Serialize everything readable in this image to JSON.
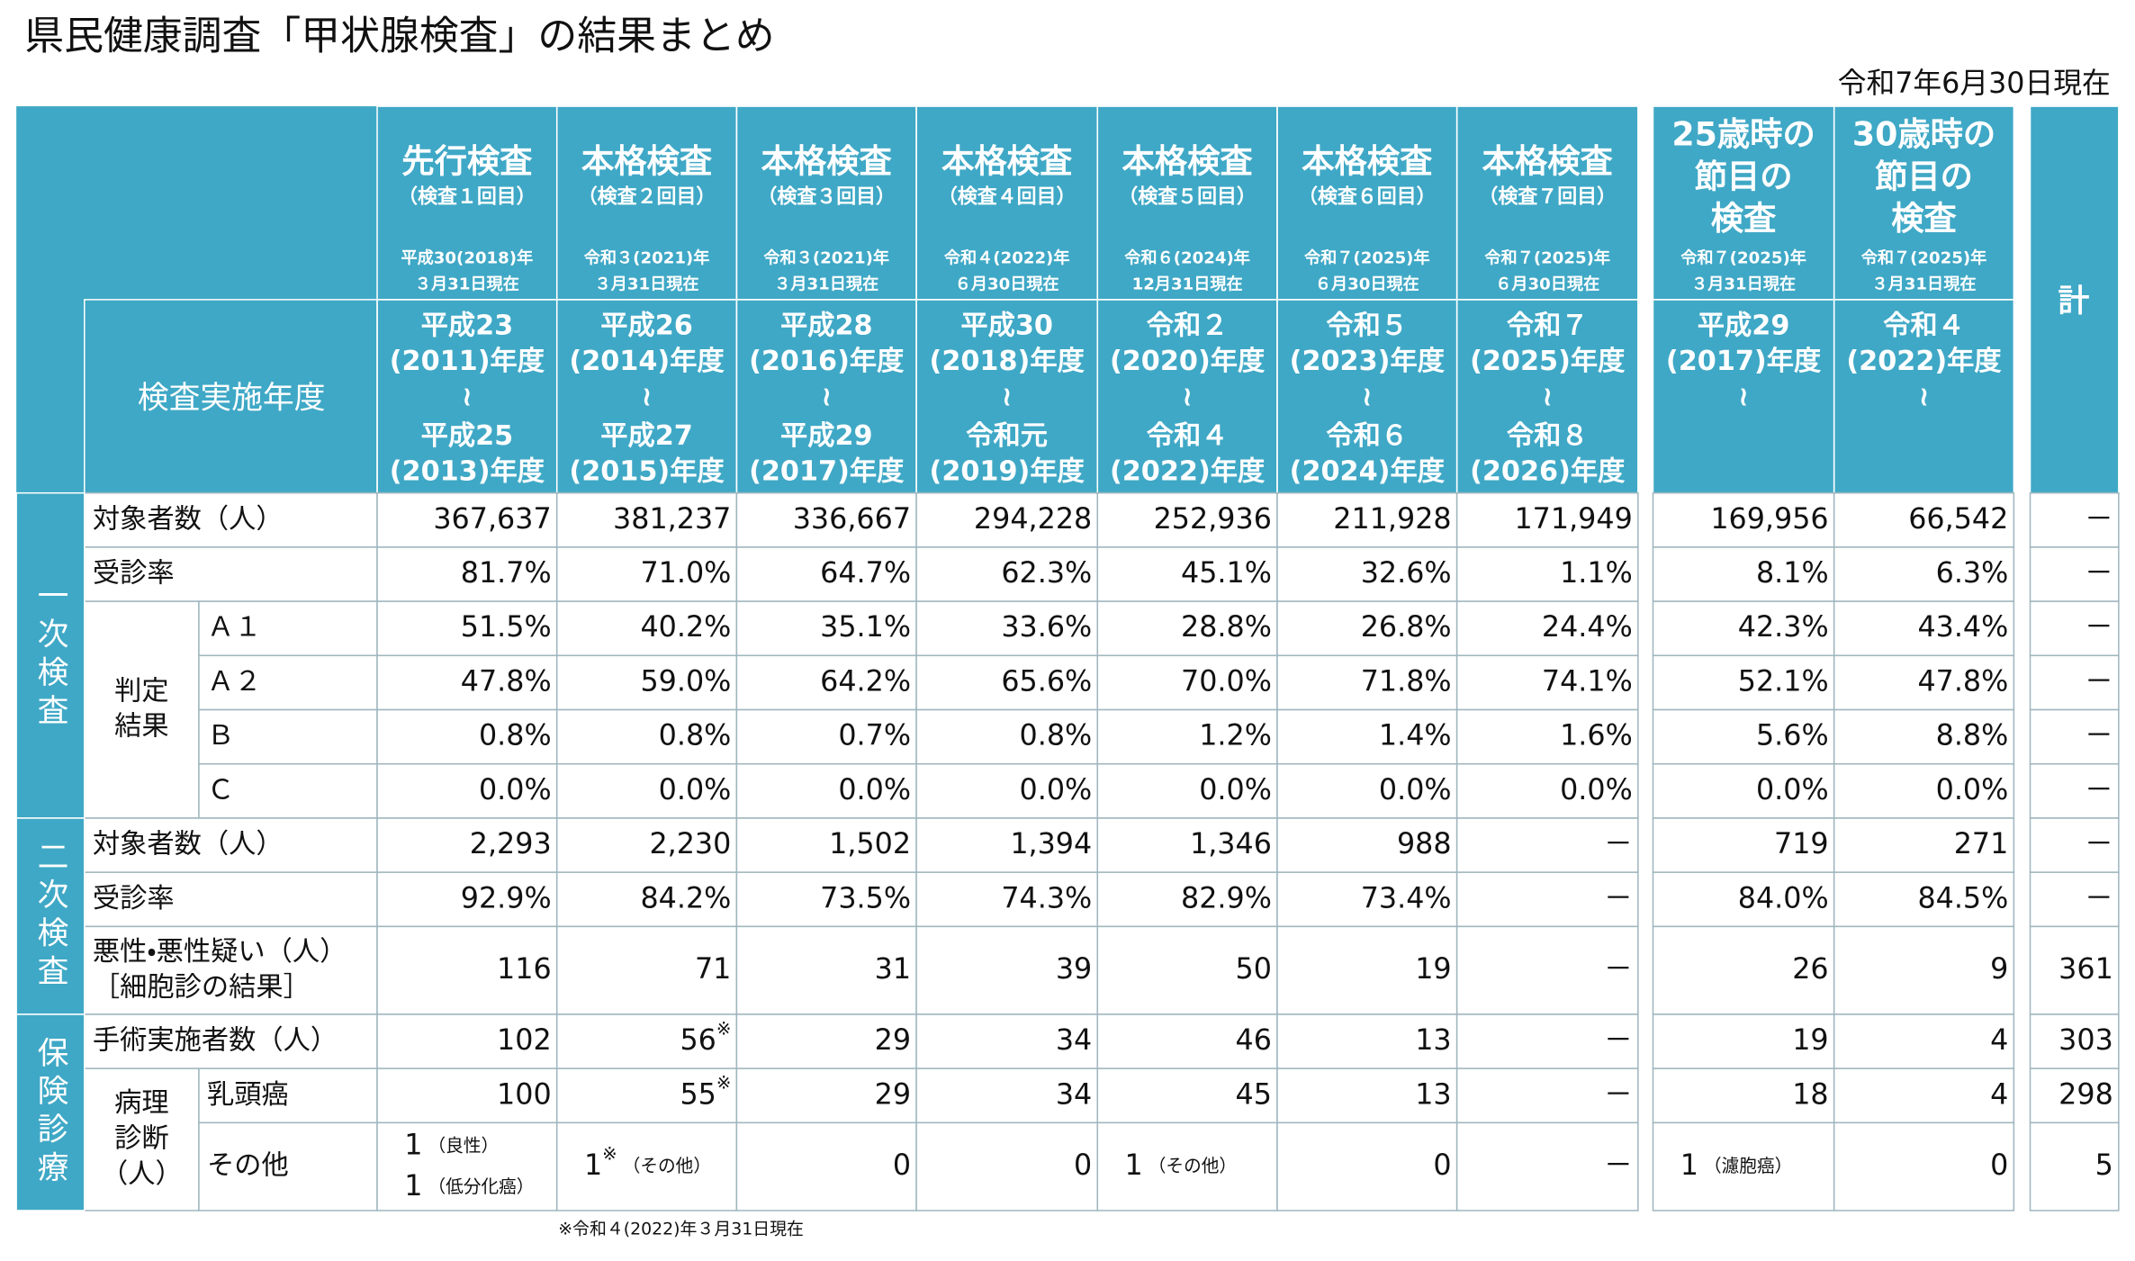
{
  "header": {
    "title": "県民健康調査「甲状腺検査」の結果まとめ",
    "as_of": "令和7年6月30日現在"
  },
  "table": {
    "columns": [
      {
        "name": [
          "先行検査"
        ],
        "round": "（検査１回目）",
        "as_of": [
          "平成30(2018)年",
          "３月31日現在"
        ],
        "period": [
          "平成23",
          "(2011)年度",
          "≀",
          "平成25",
          "(2013)年度"
        ]
      },
      {
        "name": [
          "本格検査"
        ],
        "round": "（検査２回目）",
        "as_of": [
          "令和３(2021)年",
          "３月31日現在"
        ],
        "period": [
          "平成26",
          "(2014)年度",
          "≀",
          "平成27",
          "(2015)年度"
        ]
      },
      {
        "name": [
          "本格検査"
        ],
        "round": "（検査３回目）",
        "as_of": [
          "令和３(2021)年",
          "３月31日現在"
        ],
        "period": [
          "平成28",
          "(2016)年度",
          "≀",
          "平成29",
          "(2017)年度"
        ]
      },
      {
        "name": [
          "本格検査"
        ],
        "round": "（検査４回目）",
        "as_of": [
          "令和４(2022)年",
          "６月30日現在"
        ],
        "period": [
          "平成30",
          "(2018)年度",
          "≀",
          "令和元",
          "(2019)年度"
        ]
      },
      {
        "name": [
          "本格検査"
        ],
        "round": "（検査５回目）",
        "as_of": [
          "令和６(2024)年",
          "12月31日現在"
        ],
        "period": [
          "令和２",
          "(2020)年度",
          "≀",
          "令和４",
          "(2022)年度"
        ]
      },
      {
        "name": [
          "本格検査"
        ],
        "round": "（検査６回目）",
        "as_of": [
          "令和７(2025)年",
          "６月30日現在"
        ],
        "period": [
          "令和５",
          "(2023)年度",
          "≀",
          "令和６",
          "(2024)年度"
        ]
      },
      {
        "name": [
          "本格検査"
        ],
        "round": "（検査７回目）",
        "as_of": [
          "令和７(2025)年",
          "６月30日現在"
        ],
        "period": [
          "令和７",
          "(2025)年度",
          "≀",
          "令和８",
          "(2026)年度"
        ]
      },
      {
        "name": [
          "25歳時の",
          "節目の",
          "検査"
        ],
        "as_of": [
          "令和７(2025)年",
          "３月31日現在"
        ],
        "period": [
          "平成29",
          "(2017)年度",
          "≀"
        ]
      },
      {
        "name": [
          "30歳時の",
          "節目の",
          "検査"
        ],
        "as_of": [
          "令和７(2025)年",
          "３月31日現在"
        ],
        "period": [
          "令和４",
          "(2022)年度",
          "≀"
        ]
      }
    ],
    "total_header": "計",
    "period_header": "検査実施年度",
    "sections": [
      {
        "label": "一次検査",
        "rows": [
          {
            "label": "対象者数（人）",
            "values": [
              "367,637",
              "381,237",
              "336,667",
              "294,228",
              "252,936",
              "211,928",
              "171,949",
              "169,956",
              "66,542",
              "－"
            ]
          },
          {
            "label": "受診率",
            "values": [
              "81.7%",
              "71.0%",
              "64.7%",
              "62.3%",
              "45.1%",
              "32.6%",
              "1.1%",
              "8.1%",
              "6.3%",
              "－"
            ]
          },
          {
            "label": [
              "判定",
              "結果"
            ],
            "rows": [
              {
                "label": "Ａ１",
                "values": [
                  "51.5%",
                  "40.2%",
                  "35.1%",
                  "33.6%",
                  "28.8%",
                  "26.8%",
                  "24.4%",
                  "42.3%",
                  "43.4%",
                  "－"
                ]
              },
              {
                "label": "Ａ２",
                "values": [
                  "47.8%",
                  "59.0%",
                  "64.2%",
                  "65.6%",
                  "70.0%",
                  "71.8%",
                  "74.1%",
                  "52.1%",
                  "47.8%",
                  "－"
                ]
              },
              {
                "label": "Ｂ",
                "values": [
                  "0.8%",
                  "0.8%",
                  "0.7%",
                  "0.8%",
                  "1.2%",
                  "1.4%",
                  "1.6%",
                  "5.6%",
                  "8.8%",
                  "－"
                ]
              },
              {
                "label": "Ｃ",
                "values": [
                  "0.0%",
                  "0.0%",
                  "0.0%",
                  "0.0%",
                  "0.0%",
                  "0.0%",
                  "0.0%",
                  "0.0%",
                  "0.0%",
                  "－"
                ]
              }
            ]
          }
        ]
      },
      {
        "label": "二次検査",
        "rows": [
          {
            "label": "対象者数（人）",
            "values": [
              "2,293",
              "2,230",
              "1,502",
              "1,394",
              "1,346",
              "988",
              "－",
              "719",
              "271",
              "－"
            ]
          },
          {
            "label": "受診率",
            "values": [
              "92.9%",
              "84.2%",
              "73.5%",
              "74.3%",
              "82.9%",
              "73.4%",
              "－",
              "84.0%",
              "84.5%",
              "－"
            ]
          },
          {
            "label": [
              "悪性・悪性疑い（人）",
              "［細胞診の結果］"
            ],
            "values": [
              "116",
              "71",
              "31",
              "39",
              "50",
              "19",
              "－",
              "26",
              "9",
              "361"
            ]
          }
        ]
      },
      {
        "label": "保険診療",
        "rows": [
          {
            "label": "手術実施者数（人）",
            "values": [
              "102",
              {
                "lines": [
                  {
                    "text": "56",
                    "sup": "※"
                  }
                ]
              },
              "29",
              "34",
              "46",
              "13",
              "－",
              "19",
              "4",
              "303"
            ]
          },
          {
            "label": [
              "病理",
              "診断",
              "（人）"
            ],
            "rows": [
              {
                "label": "乳頭癌",
                "values": [
                  "100",
                  {
                    "lines": [
                      {
                        "text": "55",
                        "sup": "※"
                      }
                    ]
                  },
                  "29",
                  "34",
                  "45",
                  "13",
                  "－",
                  "18",
                  "4",
                  "298"
                ]
              },
              {
                "label": "その他",
                "values": [
                  {
                    "lines": [
                      {
                        "text": "1",
                        "note": "（良性）"
                      },
                      {
                        "text": "1",
                        "note": "（低分化癌）"
                      }
                    ]
                  },
                  {
                    "lines": [
                      {
                        "text": "1",
                        "sup": "※",
                        "note": "（その他）"
                      }
                    ]
                  },
                  "0",
                  "0",
                  {
                    "lines": [
                      {
                        "text": "1",
                        "note": "（その他）"
                      }
                    ]
                  },
                  "0",
                  "－",
                  {
                    "lines": [
                      {
                        "text": "1",
                        "note": "（濾胞癌）"
                      }
                    ]
                  },
                  "0",
                  "5"
                ]
              }
            ]
          }
        ]
      }
    ]
  },
  "footnote": "※令和４(2022)年３月31日現在"
}
